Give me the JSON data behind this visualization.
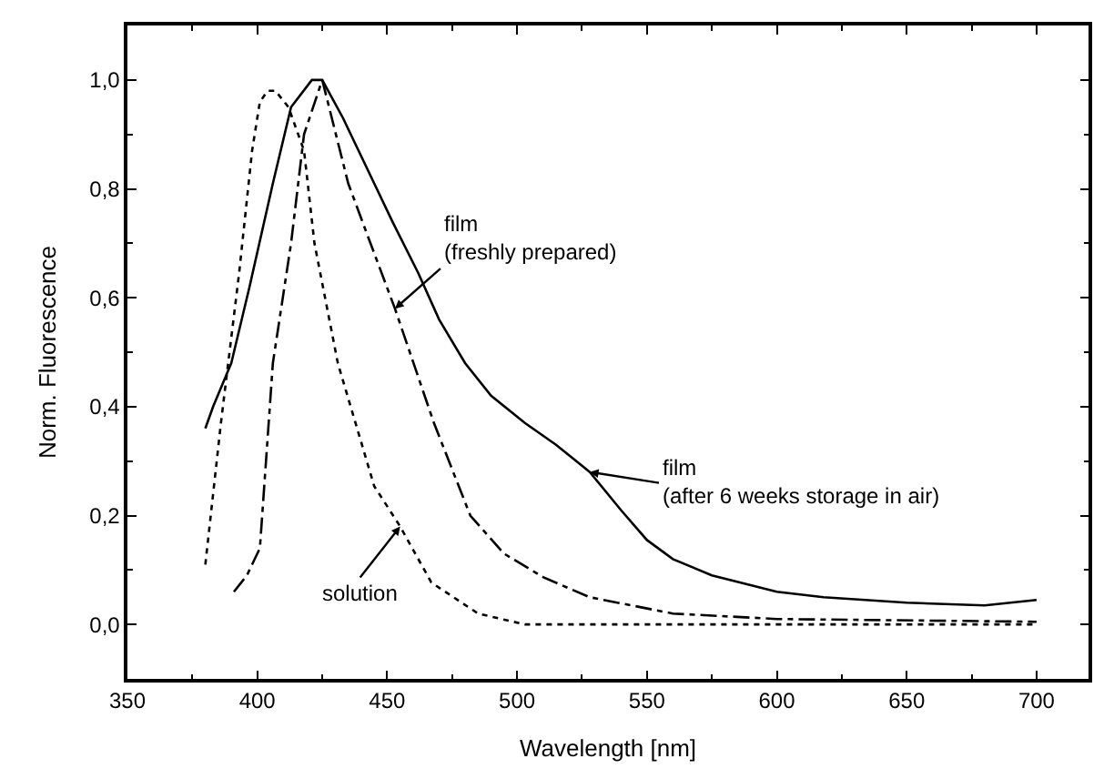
{
  "chart_data": {
    "type": "line",
    "xlabel": "Wavelength [nm]",
    "ylabel": "Norm. Fluorescence",
    "xlim": [
      350,
      720
    ],
    "ylim": [
      -0.1,
      1.1
    ],
    "xticks": [
      350,
      400,
      450,
      500,
      550,
      600,
      650,
      700
    ],
    "yticks": [
      {
        "value": 0.0,
        "label": "0,0"
      },
      {
        "value": 0.2,
        "label": "0,2"
      },
      {
        "value": 0.4,
        "label": "0,4"
      },
      {
        "value": 0.6,
        "label": "0,6"
      },
      {
        "value": 0.8,
        "label": "0,8"
      },
      {
        "value": 1.0,
        "label": "1,0"
      }
    ],
    "marker": "none",
    "series": [
      {
        "color": "#000000",
        "line_style": "solid",
        "x": [
          380,
          383,
          390,
          397,
          406,
          413,
          421,
          425,
          433,
          445,
          452,
          462,
          470,
          480,
          490,
          503,
          515,
          528,
          540,
          550,
          560,
          575,
          600,
          618,
          650,
          680,
          700
        ],
        "values": [
          0.36,
          0.4,
          0.48,
          0.62,
          0.81,
          0.95,
          1.0,
          1.0,
          0.93,
          0.81,
          0.74,
          0.645,
          0.56,
          0.48,
          0.42,
          0.37,
          0.33,
          0.28,
          0.21,
          0.155,
          0.12,
          0.09,
          0.06,
          0.05,
          0.04,
          0.035,
          0.045
        ]
      },
      {
        "color": "#000000",
        "line_style": "dashdot",
        "x": [
          391,
          396,
          401,
          406,
          413,
          418,
          425,
          435,
          442,
          453,
          468,
          482,
          495,
          510,
          528,
          560,
          600,
          700
        ],
        "values": [
          0.06,
          0.09,
          0.14,
          0.48,
          0.7,
          0.9,
          1.0,
          0.81,
          0.72,
          0.58,
          0.37,
          0.2,
          0.13,
          0.087,
          0.05,
          0.02,
          0.01,
          0.005
        ]
      },
      {
        "color": "#000000",
        "line_style": "dotted",
        "x": [
          380,
          386,
          393,
          398,
          401,
          404,
          407,
          412,
          418,
          422,
          431,
          445,
          455,
          467,
          485,
          503,
          600,
          700
        ],
        "values": [
          0.11,
          0.37,
          0.645,
          0.87,
          0.96,
          0.98,
          0.98,
          0.95,
          0.87,
          0.7,
          0.48,
          0.254,
          0.18,
          0.077,
          0.02,
          0.0,
          0.0,
          0.0
        ]
      }
    ],
    "annotations": [
      {
        "text": "film\n(freshly prepared)",
        "x": 453,
        "y": 0.58
      },
      {
        "text": "film\n(after 6 weeks storage in air)",
        "x": 528,
        "y": 0.28
      },
      {
        "text": "solution",
        "x": 455,
        "y": 0.18
      }
    ]
  }
}
